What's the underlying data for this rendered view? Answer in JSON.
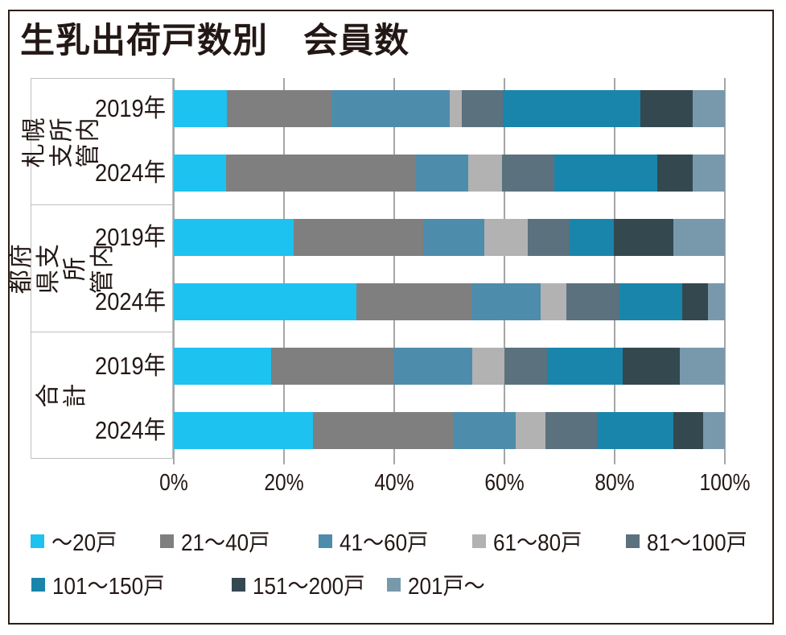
{
  "chart_data": {
    "type": "bar",
    "variant": "stacked-horizontal-100percent",
    "title": "生乳出荷戸数別　会員数",
    "xlabel": "",
    "ylabel": "",
    "xlim": [
      0,
      100
    ],
    "x_unit": "%",
    "x_ticks": [
      "0%",
      "20%",
      "40%",
      "60%",
      "80%",
      "100%"
    ],
    "grid": true,
    "legend_position": "bottom",
    "series_labels": [
      "～20戸",
      "21～40戸",
      "41～60戸",
      "61～80戸",
      "81～100戸",
      "101～150戸",
      "151～200戸",
      "201戸～"
    ],
    "series_colors": [
      "#1dc2f0",
      "#7f7f7f",
      "#4e8cab",
      "#b2b2b2",
      "#5b717e",
      "#1985ab",
      "#344850",
      "#7899ac"
    ],
    "groups": [
      {
        "label": "札幌支所管内",
        "label_lines": "札幌支所\n管内"
      },
      {
        "label": "都府県支所管内",
        "label_lines": "都府県支所\n管内"
      },
      {
        "label": "合計",
        "label_lines": "合　計"
      }
    ],
    "rows": [
      {
        "group": "札幌支所管内",
        "year": "2019年",
        "values": [
          9.6,
          19.0,
          21.5,
          2.2,
          7.4,
          25.0,
          9.5,
          5.8
        ]
      },
      {
        "group": "札幌支所管内",
        "year": "2024年",
        "values": [
          9.5,
          34.5,
          9.5,
          6.0,
          9.5,
          18.7,
          6.5,
          5.8
        ]
      },
      {
        "group": "都府県支所管内",
        "year": "2019年",
        "values": [
          21.7,
          23.6,
          11.0,
          7.9,
          7.7,
          7.9,
          10.8,
          9.4
        ]
      },
      {
        "group": "都府県支所管内",
        "year": "2024年",
        "values": [
          33.2,
          20.8,
          12.6,
          4.6,
          9.7,
          11.4,
          4.6,
          3.1
        ]
      },
      {
        "group": "合計",
        "year": "2019年",
        "values": [
          17.7,
          22.1,
          14.4,
          5.8,
          7.7,
          13.7,
          10.5,
          8.1
        ]
      },
      {
        "group": "合計",
        "year": "2024年",
        "values": [
          25.2,
          25.4,
          11.5,
          5.4,
          9.3,
          13.9,
          5.4,
          3.9
        ]
      }
    ]
  },
  "colors": {
    "background": "#ffffff",
    "text": "#231815",
    "frame_border": "#2b1e16",
    "gridline": "#a6a6a6",
    "label_box_border": "#bfbfbf"
  }
}
